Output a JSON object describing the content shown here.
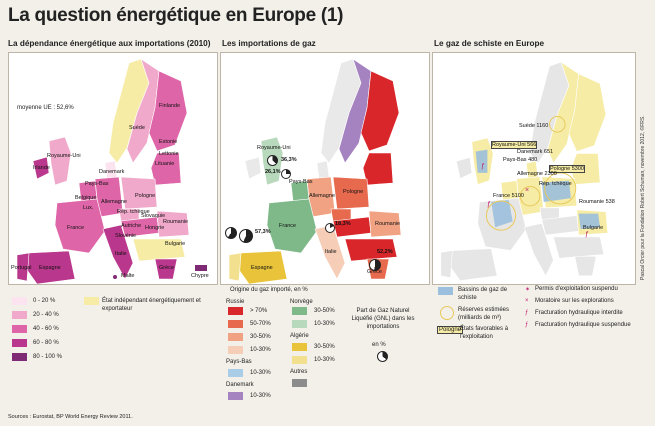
{
  "title": "La question énergétique en Europe (1)",
  "panels": {
    "dependance": {
      "heading": "La dépendance énergétique aux importations (2010)",
      "average": "moyenne UE : 52,6%",
      "countries": [
        "Finlande",
        "Suède",
        "Estonie",
        "Lettonie",
        "Lituanie",
        "Irlande",
        "Royaume-Uni",
        "Danemark",
        "Pays-Bas",
        "Pologne",
        "Belgique",
        "Allemagne",
        "Lux.",
        "Rép. tchèque",
        "Slovaquie",
        "France",
        "Autriche",
        "Hongrie",
        "Slovénie",
        "Roumanie",
        "Bulgarie",
        "Portugal",
        "Espagne",
        "Italie",
        "Grèce",
        "Malte",
        "Chypre"
      ]
    },
    "gaz": {
      "heading": "Les importations de gaz",
      "percent_labels": [
        "36,3%",
        "26,1%",
        "57,3%",
        "18,3%",
        "52,2%"
      ],
      "countries": [
        "Royaume-Uni",
        "Allemagne",
        "France",
        "Espagne",
        "Italie",
        "Roumanie",
        "Grèce",
        "Pologne",
        "Pays-Bas"
      ]
    },
    "schiste": {
      "heading": "Le gaz de schiste en Europe",
      "reserves": [
        "Suède 1160",
        "Danemark 651",
        "Pologne 5300",
        "Royaume-Uni 566",
        "Pays-Bas 480",
        "Allemagne 2300",
        "France 5100",
        "Roumanie 538"
      ],
      "countries": [
        "Rép. tchèque",
        "Bulgarie"
      ]
    }
  },
  "legend_dependance": {
    "items": [
      "0 - 20 %",
      "20 - 40 %",
      "40 - 60 %",
      "60 - 80 %",
      "80 - 100 %"
    ],
    "colors": [
      "#fbe3ef",
      "#f0a9cb",
      "#de66a8",
      "#b9378c",
      "#7e2a74"
    ],
    "independent_label": "État indépendant énergétiquement et exportateur",
    "independent_color": "#f6eca5"
  },
  "legend_gaz": {
    "heading": "Origine du gaz importé, en %",
    "groups": [
      {
        "name": "Russie",
        "items": [
          "> 70%",
          "50-70%",
          "30-50%",
          "10-30%"
        ],
        "colors": [
          "#d9262a",
          "#e76a4f",
          "#f0a283",
          "#f6cdb6"
        ]
      },
      {
        "name": "Norvège",
        "items": [
          "30-50%",
          "10-30%"
        ],
        "colors": [
          "#7fb98a",
          "#b8d9bc"
        ]
      },
      {
        "name": "Algérie",
        "items": [
          "30-50%",
          "10-30%"
        ],
        "colors": [
          "#e9c43a",
          "#f3e08e"
        ]
      },
      {
        "name": "Pays-Bas",
        "items": [
          "10-30%"
        ],
        "colors": [
          "#a9cde6"
        ]
      },
      {
        "name": "Danemark",
        "items": [
          "10-30%"
        ],
        "colors": [
          "#a583c0"
        ]
      },
      {
        "name": "Autres",
        "items": [
          ""
        ],
        "colors": [
          "#8c8c8c"
        ]
      }
    ],
    "gnl_label": "Part de Gaz Naturel Liquéfié (GNL) dans les importations",
    "gnl_pie_label": "en %"
  },
  "legend_schiste": {
    "basins": "Bassins de gaz de schiste",
    "reserves": "Réserves estimées (milliards de m³)",
    "favorable_tag": "Pologne",
    "favorable": "États favorables à l'exploitation",
    "symbols": [
      "Permis d'exploitation suspendu",
      "Moratoire sur les explorations",
      "Fracturation hydraulique interdite",
      "Fracturation hydraulique suspendue"
    ]
  },
  "sources": "Sources : Eurostat, BP World Energy Review 2011.",
  "credit": "Pascal Orcier pour la Fondation Robert Schuman, novembre 2012, ©FRS."
}
